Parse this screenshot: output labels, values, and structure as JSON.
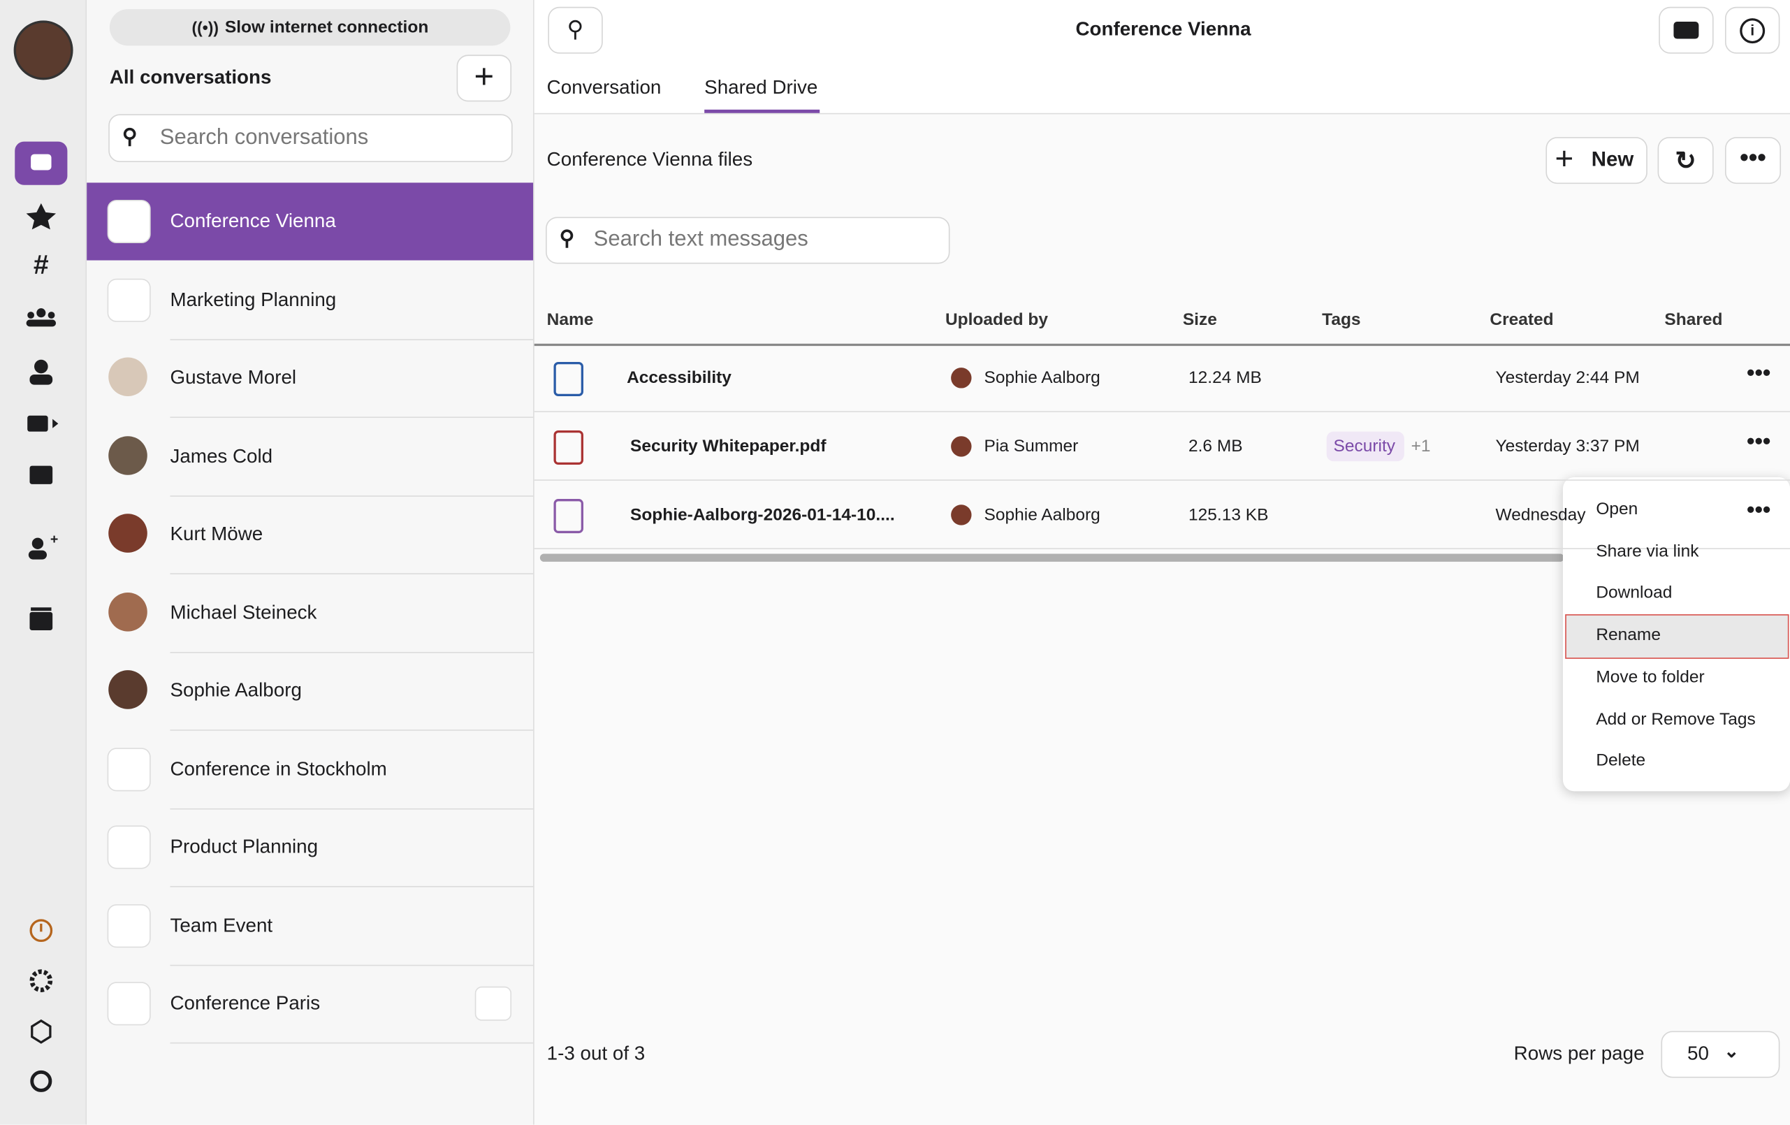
{
  "banner": "Slow internet connection",
  "sidebar": {
    "title": "All conversations",
    "search_placeholder": "Search conversations",
    "conversations": [
      "Conference Vienna",
      "Marketing Planning",
      "Gustave Morel",
      "James Cold",
      "Kurt Möwe",
      "Michael Steineck",
      "Sophie Aalborg",
      "Conference in Stockholm",
      "Product Planning",
      "Team Event",
      "Conference Paris"
    ]
  },
  "header": {
    "title": "Conference Vienna",
    "tabs": [
      "Conversation",
      "Shared Drive"
    ]
  },
  "drive": {
    "title": "Conference Vienna files",
    "new_button": "New",
    "search_placeholder": "Search text messages",
    "columns": [
      "Name",
      "Uploaded by",
      "Size",
      "Tags",
      "Created",
      "Shared"
    ],
    "rows": [
      {
        "name": "Accessibility",
        "uploaded_by": "Sophie Aalborg",
        "size": "12.24 MB",
        "created": "Yesterday 2:44 PM"
      },
      {
        "name": "Security Whitepaper.pdf",
        "uploaded_by": "Pia Summer",
        "size": "2.6 MB",
        "tag": "Security",
        "tag_more": "+1",
        "created": "Yesterday 3:37 PM"
      },
      {
        "name": "Sophie-Aalborg-2026-01-14-10....",
        "uploaded_by": "Sophie Aalborg",
        "size": "125.13 KB",
        "created": "Wednesday"
      }
    ]
  },
  "context_menu": [
    "Open",
    "Share via link",
    "Download",
    "Rename",
    "Move to folder",
    "Add or Remove Tags",
    "Delete"
  ],
  "pagination": {
    "range": "1-3 out of 3",
    "rows_label": "Rows per page",
    "rows_value": "50"
  }
}
